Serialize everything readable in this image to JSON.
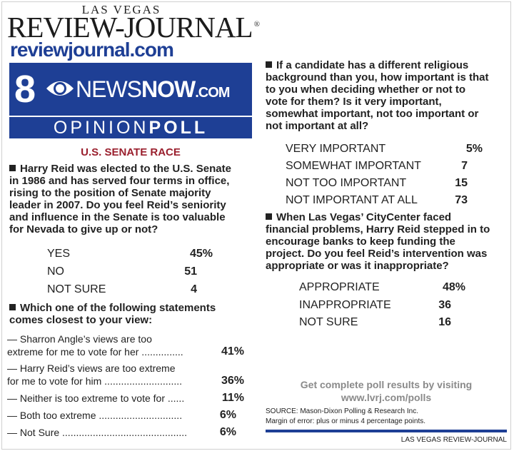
{
  "masthead": {
    "city": "LAS VEGAS",
    "paper": "REVIEW-JOURNAL",
    "trademark": "®",
    "url": "reviewjournal.com"
  },
  "banner": {
    "channel": "8",
    "news": "NEWS",
    "now": "NOW",
    "com": ".COM",
    "opinion": "OPINION",
    "poll": "POLL",
    "colors": {
      "brand_blue": "#1e3f95",
      "section_red": "#9a1f2d"
    }
  },
  "section_title": "U.S. SENATE RACE",
  "q1": {
    "text": "Harry Reid was elected to the U.S. Senate in 1986 and has served four terms in office, rising to the position of Senate majority leader in 2007. Do you feel Reid’s seniority and influence in the Senate is too valuable for Nevada to give up or not?",
    "lines": [
      "Harry Reid was elected to the U.S. Senate",
      "in 1986 and has served four terms in office,",
      "rising to the position of Senate majority",
      "leader in 2007.  Do you feel Reid’s seniority",
      "and influence in the Senate is too valuable",
      "for Nevada to give up or not?"
    ],
    "answers": [
      {
        "label": "YES",
        "value": "45%"
      },
      {
        "label": "NO",
        "value": "51"
      },
      {
        "label": "NOT SURE",
        "value": "4"
      }
    ]
  },
  "q2": {
    "lines": [
      "Which one of the following statements",
      "comes closest to your view:"
    ],
    "answers": [
      {
        "line1": "— Sharron Angle’s views are too",
        "line2": "extreme for me to vote for her ...............",
        "value": "41%"
      },
      {
        "line1": "— Harry Reid’s views are too extreme",
        "line2": "for me to vote for him ............................",
        "value": "36%"
      },
      {
        "line1": "— Neither is too extreme to vote for ......",
        "line2": "",
        "value": "11%"
      },
      {
        "line1": "— Both too extreme ..............................",
        "line2": "",
        "value": "6%"
      },
      {
        "line1": "— Not Sure .............................................",
        "line2": "",
        "value": "6%"
      }
    ]
  },
  "q3": {
    "lines": [
      "If a candidate has a different religious",
      "background than you, how important is that",
      "to you when deciding whether or not to",
      "vote for them?  Is it very important,",
      "somewhat important, not too important or",
      "not important at all?"
    ],
    "answers": [
      {
        "label": "VERY IMPORTANT",
        "value": "5%"
      },
      {
        "label": "SOMEWHAT IMPORTANT",
        "value": "7"
      },
      {
        "label": "NOT TOO IMPORTANT",
        "value": "15"
      },
      {
        "label": "NOT IMPORTANT AT ALL",
        "value": "73"
      }
    ]
  },
  "q4": {
    "lines": [
      "When Las Vegas’ CityCenter faced",
      "financial problems, Harry Reid stepped in to",
      "encourage banks to keep funding the",
      "project.  Do you feel Reid’s intervention was",
      "appropriate or was it inappropriate?"
    ],
    "answers": [
      {
        "label": "APPROPRIATE",
        "value": "48%"
      },
      {
        "label": "INAPPROPRIATE",
        "value": "36"
      },
      {
        "label": "NOT SURE",
        "value": "16"
      }
    ]
  },
  "footer": {
    "more_line1": "Get complete poll results by visiting",
    "more_line2": "www.lvrj.com/polls",
    "source": "SOURCE: Mason-Dixon Polling & Research Inc.",
    "margin": "Margin of error: plus or minus 4 percentage points.",
    "credit": "LAS VEGAS REVIEW-JOURNAL"
  }
}
